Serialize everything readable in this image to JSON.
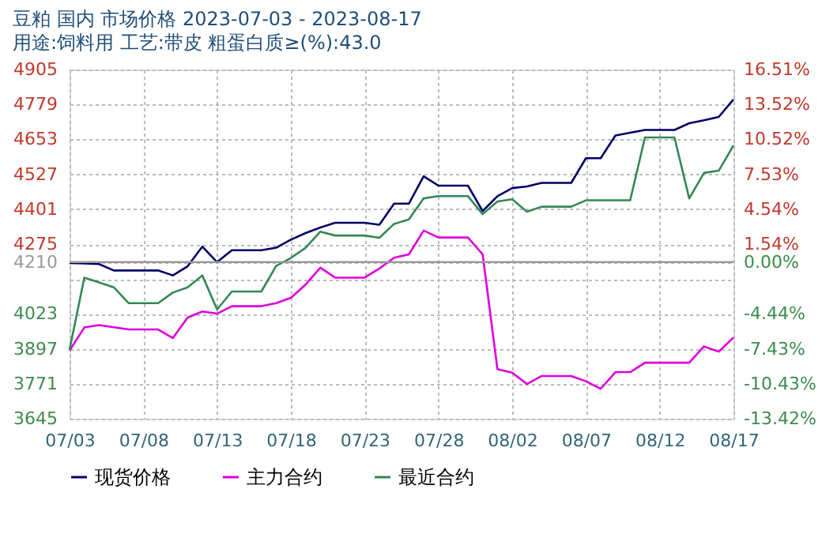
{
  "chart_data": {
    "type": "line",
    "title": "豆粕 国内 市场价格 2023-07-03 - 2023-08-17",
    "subtitle": "用途:饲料用 工艺:带皮 粗蛋白质≥(%):43.0",
    "x": [
      "2023-07-03",
      "2023-07-04",
      "2023-07-05",
      "2023-07-06",
      "2023-07-07",
      "2023-07-09",
      "2023-07-10",
      "2023-07-11",
      "2023-07-12",
      "2023-07-13",
      "2023-07-14",
      "2023-07-16",
      "2023-07-17",
      "2023-07-18",
      "2023-07-19",
      "2023-07-20",
      "2023-07-21",
      "2023-07-23",
      "2023-07-24",
      "2023-07-25",
      "2023-07-26",
      "2023-07-27",
      "2023-07-28",
      "2023-07-30",
      "2023-07-31",
      "2023-08-01",
      "2023-08-02",
      "2023-08-03",
      "2023-08-04",
      "2023-08-06",
      "2023-08-07",
      "2023-08-08",
      "2023-08-09",
      "2023-08-10",
      "2023-08-11",
      "2023-08-13",
      "2023-08-14",
      "2023-08-15",
      "2023-08-16",
      "2023-08-17"
    ],
    "series": [
      {
        "name": "现货价格",
        "color": "#000066",
        "values": [
          4207,
          4205,
          4203,
          4180,
          4180,
          4180,
          4162,
          4195,
          4266,
          4210,
          4253,
          4253,
          4262,
          4291,
          4315,
          4335,
          4352,
          4352,
          4345,
          4421,
          4421,
          4520,
          4486,
          4486,
          4394,
          4448,
          4477,
          4483,
          4496,
          4496,
          4585,
          4585,
          4667,
          4677,
          4687,
          4687,
          4711,
          4722,
          4734,
          4797
        ]
      },
      {
        "name": "主力合约",
        "color": "#dd00dd",
        "values": [
          3891,
          3974,
          3983,
          3975,
          3967,
          3967,
          3936,
          4010,
          4032,
          4024,
          4051,
          4051,
          4062,
          4081,
          4129,
          4190,
          4154,
          4154,
          4187,
          4226,
          4238,
          4324,
          4299,
          4299,
          4238,
          3824,
          3811,
          3770,
          3799,
          3799,
          3780,
          3753,
          3813,
          3813,
          3847,
          3847,
          3847,
          3906,
          3887,
          3938
        ]
      },
      {
        "name": "最近合约",
        "color": "#338855",
        "values": [
          3894,
          4154,
          4137,
          4119,
          4062,
          4062,
          4100,
          4119,
          4162,
          4039,
          4104,
          4104,
          4196,
          4225,
          4262,
          4320,
          4306,
          4306,
          4298,
          4348,
          4364,
          4440,
          4448,
          4448,
          4383,
          4429,
          4437,
          4392,
          4410,
          4410,
          4433,
          4433,
          4433,
          4433,
          4660,
          4660,
          4440,
          4532,
          4540,
          4631
        ]
      }
    ],
    "xlim": [
      "2023-07-03",
      "2023-08-17"
    ],
    "xticks": [
      {
        "value": "2023-07-03",
        "label": "07/03"
      },
      {
        "value": "2023-07-08",
        "label": "07/08"
      },
      {
        "value": "2023-07-13",
        "label": "07/13"
      },
      {
        "value": "2023-07-18",
        "label": "07/18"
      },
      {
        "value": "2023-07-23",
        "label": "07/23"
      },
      {
        "value": "2023-07-28",
        "label": "07/28"
      },
      {
        "value": "2023-08-02",
        "label": "08/02"
      },
      {
        "value": "2023-08-07",
        "label": "08/07"
      },
      {
        "value": "2023-08-12",
        "label": "08/12"
      },
      {
        "value": "2023-08-17",
        "label": "08/17"
      }
    ],
    "ylim": [
      3645,
      4905
    ],
    "yticks": [
      4905,
      4779,
      4653,
      4527,
      4401,
      4275,
      4210,
      {
        "value": 4149,
        "label": null
      },
      4023,
      3897,
      3771,
      3645
    ],
    "y2lim": [
      -13.42,
      16.51
    ],
    "y2ticks": [
      {
        "value": 16.51,
        "label": "16.51%"
      },
      {
        "value": 13.52,
        "label": "13.52%"
      },
      {
        "value": 10.52,
        "label": "10.52%"
      },
      {
        "value": 7.53,
        "label": "7.53%"
      },
      {
        "value": 4.54,
        "label": "4.54%"
      },
      {
        "value": 1.54,
        "label": "1.54%"
      },
      {
        "value": 0,
        "label": "0.00%"
      },
      {
        "value": -1.45,
        "label": null
      },
      {
        "value": -4.44,
        "label": "-4.44%"
      },
      {
        "value": -7.43,
        "label": "-7.43%"
      },
      {
        "value": -10.43,
        "label": "-10.43%"
      },
      {
        "value": -13.42,
        "label": "-13.42%"
      }
    ],
    "ref_lines": [
      {
        "axis": "y",
        "value": 4210,
        "color": "#999999",
        "line_style": "solid"
      }
    ],
    "grid": true,
    "legend": "bottom",
    "marker": "none",
    "line_style": "solid"
  }
}
